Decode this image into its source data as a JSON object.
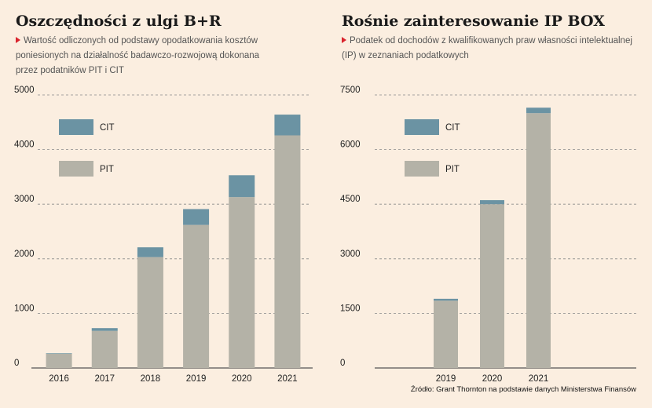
{
  "colors": {
    "pit": "#b4b2a7",
    "cit": "#6b93a3",
    "grid": "#8a8a8a",
    "axis": "#555555",
    "marker": "#d9232d"
  },
  "source": "Źródło: Grant Thornton na podstawie danych Ministerstwa Finansów",
  "chart_data": [
    {
      "type": "bar",
      "stacked": true,
      "title": "Oszczędności z ulgi B+R",
      "subtitle": "Wartość odliczonych od podstawy opodatkowania kosztów poniesionych na działalność badawczo-rozwojową dokonana przez podatników PIT i CIT",
      "categories": [
        "2016",
        "2017",
        "2018",
        "2019",
        "2020",
        "2021"
      ],
      "series": [
        {
          "name": "PIT",
          "values": [
            260,
            680,
            2030,
            2620,
            3130,
            4260
          ]
        },
        {
          "name": "CIT",
          "values": [
            10,
            50,
            180,
            290,
            400,
            380
          ]
        }
      ],
      "yticks": [
        0,
        1000,
        2000,
        3000,
        4000,
        5000
      ],
      "ylim": [
        0,
        5000
      ],
      "grid": true,
      "legend": "top-left"
    },
    {
      "type": "bar",
      "stacked": true,
      "title": "Rośnie zainteresowanie IP BOX",
      "subtitle": "Podatek od dochodów z kwalifikowanych praw własności intelektualnej (IP) w zeznaniach podatkowych",
      "categories": [
        "",
        "2019",
        "2020",
        "2021",
        ""
      ],
      "series": [
        {
          "name": "PIT",
          "values": [
            0,
            1850,
            4500,
            7000,
            0
          ]
        },
        {
          "name": "CIT",
          "values": [
            0,
            50,
            110,
            150,
            0
          ]
        }
      ],
      "yticks": [
        0,
        1500,
        3000,
        4500,
        6000,
        7500
      ],
      "ylim": [
        0,
        7500
      ],
      "grid": true,
      "legend": "top-left"
    }
  ]
}
